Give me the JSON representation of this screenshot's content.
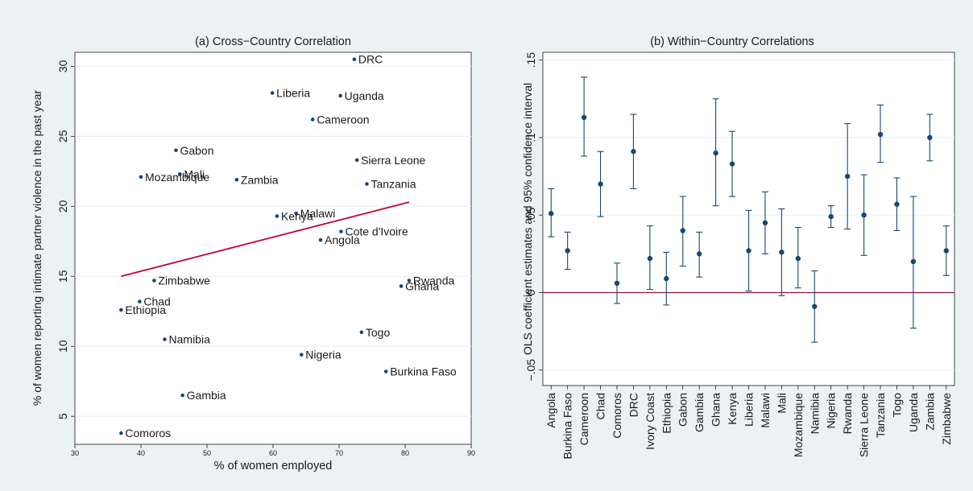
{
  "colors": {
    "outer_background": "#eaf2f3",
    "plot_background": "#ffffff",
    "grid": "#eaf2f3",
    "marker": "#1a476f",
    "fit_line": "#c10534",
    "zero_line": "#8a1a4a",
    "text": "#1a1a1a"
  },
  "chart_data": [
    {
      "type": "scatter",
      "title": "(a) Cross−Country Correlation",
      "xlabel": "% of women employed",
      "ylabel": "% of women reporting intimate partner violence in the past year",
      "xlim": [
        30,
        90
      ],
      "ylim": [
        3,
        31
      ],
      "x_ticks": [
        30,
        40,
        50,
        60,
        70,
        80,
        90
      ],
      "y_ticks": [
        5,
        10,
        15,
        20,
        25,
        30
      ],
      "grid": true,
      "points": [
        {
          "label": "DRC",
          "x": 72.3,
          "y": 30.5
        },
        {
          "label": "Liberia",
          "x": 59.9,
          "y": 28.1
        },
        {
          "label": "Uganda",
          "x": 70.2,
          "y": 27.9
        },
        {
          "label": "Cameroon",
          "x": 66.0,
          "y": 26.2
        },
        {
          "label": "Gabon",
          "x": 45.3,
          "y": 24.0
        },
        {
          "label": "Sierra Leone",
          "x": 72.7,
          "y": 23.3
        },
        {
          "label": "Mali",
          "x": 45.9,
          "y": 22.3
        },
        {
          "label": "Mozambique",
          "x": 40.0,
          "y": 22.1
        },
        {
          "label": "Zambia",
          "x": 54.5,
          "y": 21.9
        },
        {
          "label": "Tanzania",
          "x": 74.2,
          "y": 21.6
        },
        {
          "label": "Malawi",
          "x": 63.5,
          "y": 19.5
        },
        {
          "label": "Kenya",
          "x": 60.6,
          "y": 19.3
        },
        {
          "label": "Cote d'Ivoire",
          "x": 70.3,
          "y": 18.2
        },
        {
          "label": "Angola",
          "x": 67.2,
          "y": 17.6
        },
        {
          "label": "Zimbabwe",
          "x": 42.0,
          "y": 14.7
        },
        {
          "label": "Rwanda",
          "x": 80.6,
          "y": 14.7
        },
        {
          "label": "Ghana",
          "x": 79.4,
          "y": 14.3
        },
        {
          "label": "Chad",
          "x": 39.8,
          "y": 13.2
        },
        {
          "label": "Ethiopia",
          "x": 37.0,
          "y": 12.6
        },
        {
          "label": "Togo",
          "x": 73.4,
          "y": 11.0
        },
        {
          "label": "Namibia",
          "x": 43.6,
          "y": 10.5
        },
        {
          "label": "Nigeria",
          "x": 64.3,
          "y": 9.4
        },
        {
          "label": "Burkina Faso",
          "x": 77.1,
          "y": 8.2
        },
        {
          "label": "Gambia",
          "x": 46.3,
          "y": 6.5
        },
        {
          "label": "Comoros",
          "x": 37.0,
          "y": 3.8
        }
      ],
      "fit_line": {
        "x": [
          37.0,
          80.6
        ],
        "y": [
          15.0,
          20.3
        ]
      }
    },
    {
      "type": "errorbar",
      "title": "(b) Within−Country Correlations",
      "xlabel": "",
      "ylabel": "OLS coefficient estimates and 95% confidence interval",
      "ylim": [
        -0.06,
        0.155
      ],
      "y_ticks": [
        -0.05,
        0,
        0.05,
        0.1,
        0.15
      ],
      "y_tick_labels": [
        "−.05",
        "0",
        ".05",
        ".1",
        ".15"
      ],
      "grid": true,
      "reference_line": 0,
      "categories": [
        "Angola",
        "Burkina Faso",
        "Cameroon",
        "Chad",
        "Comoros",
        "DRC",
        "Ivory Coast",
        "Ethiopia",
        "Gabon",
        "Gambia",
        "Ghana",
        "Kenya",
        "Liberia",
        "Malawi",
        "Mali",
        "Mozambique",
        "Namibia",
        "Nigeria",
        "Rwanda",
        "Sierra Leone",
        "Tanzania",
        "Togo",
        "Uganda",
        "Zambia",
        "Zimbabwe"
      ],
      "estimates": [
        0.051,
        0.027,
        0.113,
        0.07,
        0.006,
        0.091,
        0.022,
        0.009,
        0.04,
        0.025,
        0.09,
        0.083,
        0.027,
        0.045,
        0.026,
        0.022,
        -0.009,
        0.049,
        0.075,
        0.05,
        0.102,
        0.057,
        0.02,
        0.1,
        0.027
      ],
      "ci_low": [
        0.036,
        0.015,
        0.088,
        0.049,
        -0.007,
        0.067,
        0.002,
        -0.008,
        0.017,
        0.01,
        0.056,
        0.062,
        0.001,
        0.025,
        -0.002,
        0.003,
        -0.032,
        0.042,
        0.041,
        0.024,
        0.084,
        0.04,
        -0.023,
        0.085,
        0.011
      ],
      "ci_high": [
        0.067,
        0.039,
        0.139,
        0.091,
        0.019,
        0.115,
        0.043,
        0.026,
        0.062,
        0.039,
        0.125,
        0.104,
        0.053,
        0.065,
        0.054,
        0.042,
        0.014,
        0.056,
        0.109,
        0.076,
        0.121,
        0.074,
        0.062,
        0.115,
        0.043
      ]
    }
  ]
}
